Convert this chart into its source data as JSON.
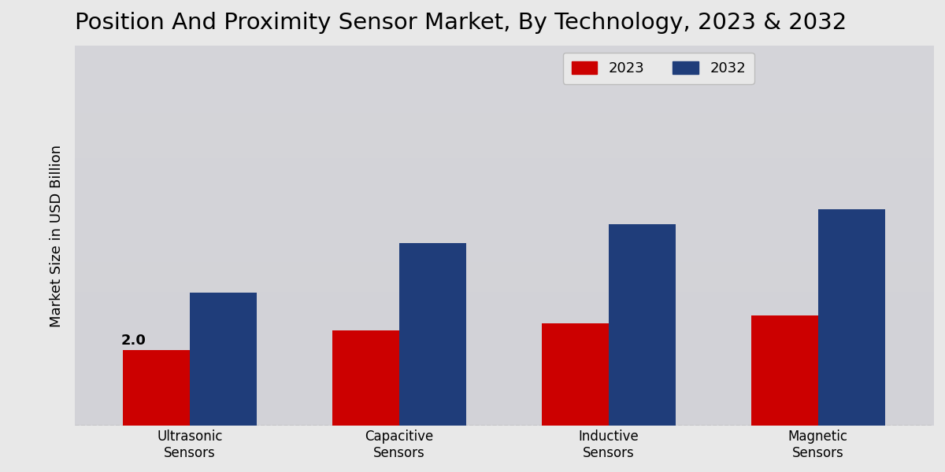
{
  "title": "Position And Proximity Sensor Market, By Technology, 2023 & 2032",
  "ylabel": "Market Size in USD Billion",
  "categories": [
    "Ultrasonic\nSensors",
    "Capacitive\nSensors",
    "Inductive\nSensors",
    "Magnetic\nSensors"
  ],
  "values_2023": [
    2.0,
    2.5,
    2.7,
    2.9
  ],
  "values_2032": [
    3.5,
    4.8,
    5.3,
    5.7
  ],
  "color_2023": "#cc0000",
  "color_2032": "#1f3d7a",
  "annotation_value": "2.0",
  "annotation_bar_index": 0,
  "legend_labels": [
    "2023",
    "2032"
  ],
  "background_color_top": "#f0f0f0",
  "background_color_bottom": "#d8d8d8",
  "bar_width": 0.32,
  "ylim_max": 10.0,
  "title_fontsize": 21,
  "label_fontsize": 13,
  "tick_fontsize": 12,
  "legend_fontsize": 13,
  "annotation_fontsize": 13
}
